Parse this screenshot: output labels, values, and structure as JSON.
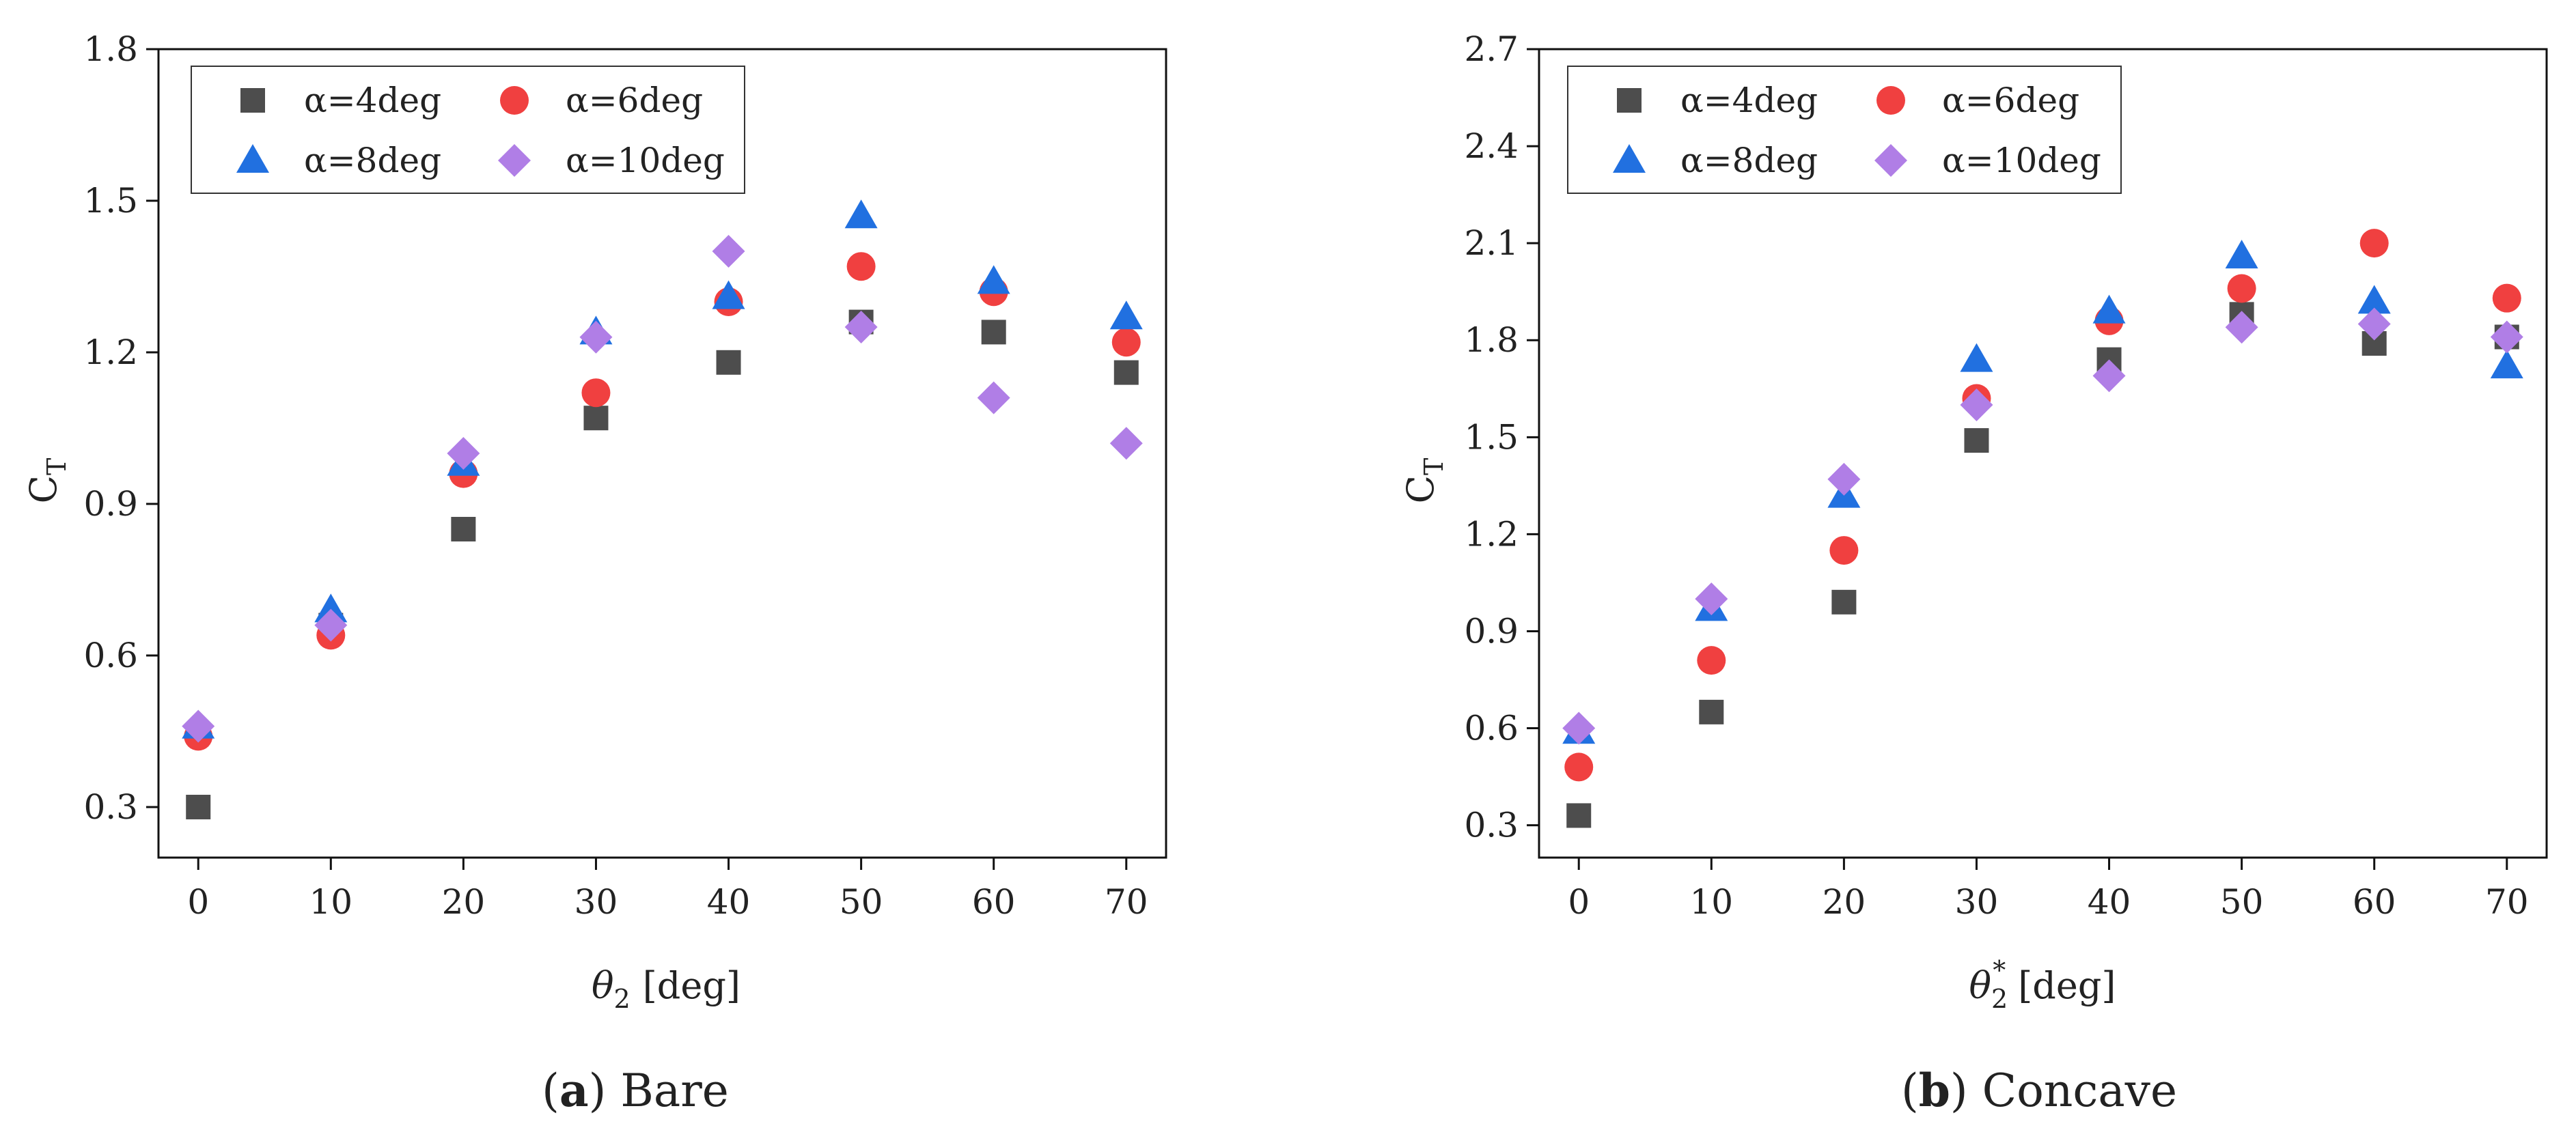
{
  "chart_data": [
    {
      "type": "scatter",
      "caption": {
        "letter": "a",
        "text": "Bare"
      },
      "ylabel": {
        "main": "C",
        "sub": "T"
      },
      "xlabel": {
        "symbol": "θ",
        "sub": "2",
        "sup": "",
        "unit": "[deg]"
      },
      "xlim": [
        -3,
        73
      ],
      "ylim": [
        0.2,
        1.8
      ],
      "xticks": [
        0,
        10,
        20,
        30,
        40,
        50,
        60,
        70
      ],
      "yticks": [
        0.3,
        0.6,
        0.9,
        1.2,
        1.5,
        1.8
      ],
      "ytick_labels": [
        "0.3",
        "0.6",
        "0.9",
        "1.2",
        "1.5",
        "1.8"
      ],
      "legend_position": "top-left",
      "x": [
        0,
        10,
        20,
        30,
        40,
        50,
        60,
        70
      ],
      "series": [
        {
          "name": "α=4deg",
          "marker": "square",
          "color": "#4d4d4d",
          "values": [
            0.3,
            0.66,
            0.85,
            1.07,
            1.18,
            1.26,
            1.24,
            1.16
          ]
        },
        {
          "name": "α=6deg",
          "marker": "circle",
          "color": "#f04040",
          "values": [
            0.44,
            0.64,
            0.96,
            1.12,
            1.3,
            1.37,
            1.32,
            1.22
          ]
        },
        {
          "name": "α=8deg",
          "marker": "triangle",
          "color": "#2170e0",
          "values": [
            0.46,
            0.69,
            0.98,
            1.24,
            1.31,
            1.47,
            1.34,
            1.27
          ]
        },
        {
          "name": "α=10deg",
          "marker": "diamond",
          "color": "#b07ee6",
          "values": [
            0.46,
            0.66,
            1.0,
            1.23,
            1.4,
            1.25,
            1.11,
            1.02
          ]
        }
      ]
    },
    {
      "type": "scatter",
      "caption": {
        "letter": "b",
        "text": "Concave"
      },
      "ylabel": {
        "main": "C",
        "sub": "T"
      },
      "xlabel": {
        "symbol": "θ",
        "sub": "2",
        "sup": "*",
        "unit": "[deg]"
      },
      "xlim": [
        -3,
        73
      ],
      "ylim": [
        0.2,
        2.7
      ],
      "xticks": [
        0,
        10,
        20,
        30,
        40,
        50,
        60,
        70
      ],
      "yticks": [
        0.3,
        0.6,
        0.9,
        1.2,
        1.5,
        1.8,
        2.1,
        2.4,
        2.7
      ],
      "ytick_labels": [
        "0.3",
        "0.6",
        "0.9",
        "1.2",
        "1.5",
        "1.8",
        "2.1",
        "2.4",
        "2.7"
      ],
      "legend_position": "top-left",
      "x": [
        0,
        10,
        20,
        30,
        40,
        50,
        60,
        70
      ],
      "series": [
        {
          "name": "α=4deg",
          "marker": "square",
          "color": "#4d4d4d",
          "values": [
            0.33,
            0.65,
            0.99,
            1.49,
            1.74,
            1.88,
            1.79,
            1.81
          ]
        },
        {
          "name": "α=6deg",
          "marker": "circle",
          "color": "#f04040",
          "values": [
            0.48,
            0.81,
            1.15,
            1.62,
            1.86,
            1.96,
            2.1,
            1.93
          ]
        },
        {
          "name": "α=8deg",
          "marker": "triangle",
          "color": "#2170e0",
          "values": [
            0.59,
            0.97,
            1.32,
            1.74,
            1.89,
            2.06,
            1.92,
            1.72
          ]
        },
        {
          "name": "α=10deg",
          "marker": "diamond",
          "color": "#b07ee6",
          "values": [
            0.6,
            1.0,
            1.37,
            1.6,
            1.69,
            1.84,
            1.85,
            1.81
          ]
        }
      ]
    }
  ]
}
